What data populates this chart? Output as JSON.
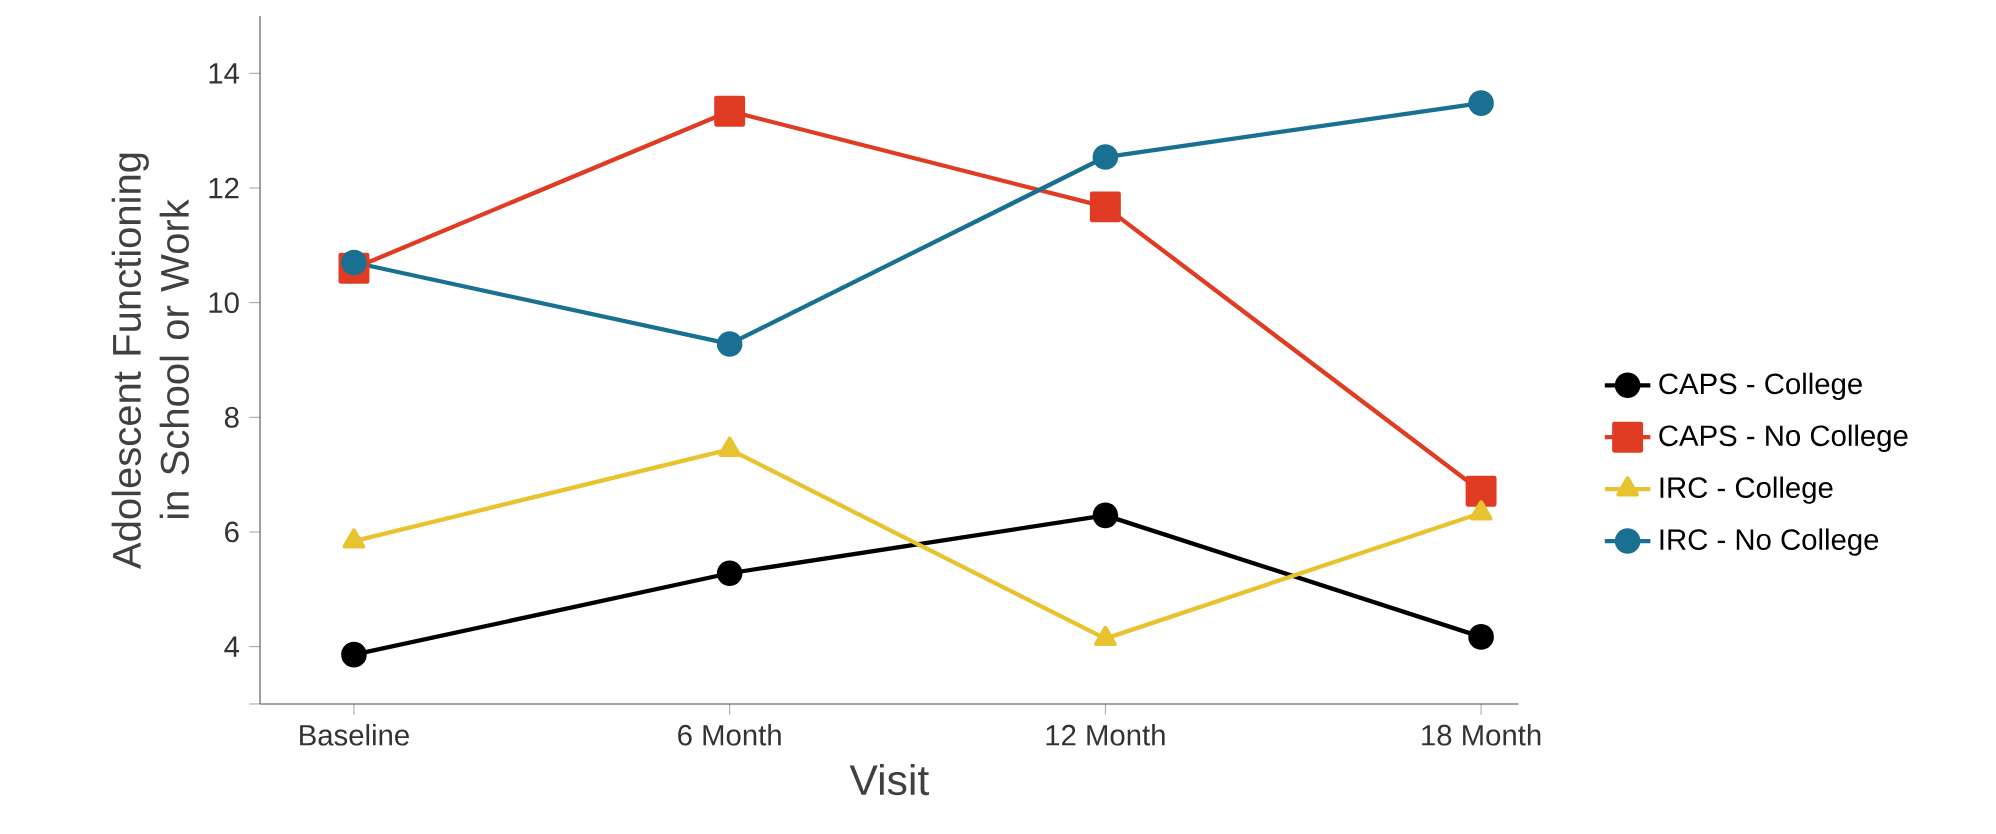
{
  "chart_data": {
    "type": "line",
    "xlabel": "Visit",
    "ylabel": "Adolescent Functioning in School or Work",
    "categories": [
      "Baseline",
      "6 Month",
      "12 Month",
      "18 Month"
    ],
    "series": [
      {
        "name": "CAPS - College",
        "color": "#000000",
        "marker": "circle",
        "values": [
          3.86,
          5.28,
          6.29,
          4.17
        ]
      },
      {
        "name": "CAPS - No College",
        "color": "#e03c24",
        "marker": "square",
        "values": [
          10.6,
          13.34,
          11.67,
          6.71
        ]
      },
      {
        "name": "IRC - College",
        "color": "#e8c330",
        "marker": "triangle",
        "values": [
          5.84,
          7.44,
          4.14,
          6.33
        ]
      },
      {
        "name": "IRC - No College",
        "color": "#1a7090",
        "marker": "circle",
        "values": [
          10.7,
          9.28,
          12.54,
          13.48
        ]
      }
    ],
    "ylim": [
      3,
      15
    ],
    "yticks": [
      {
        "value": 3,
        "label": null
      },
      4,
      6,
      8,
      10,
      12,
      14
    ],
    "legend": "right",
    "grid": false
  }
}
